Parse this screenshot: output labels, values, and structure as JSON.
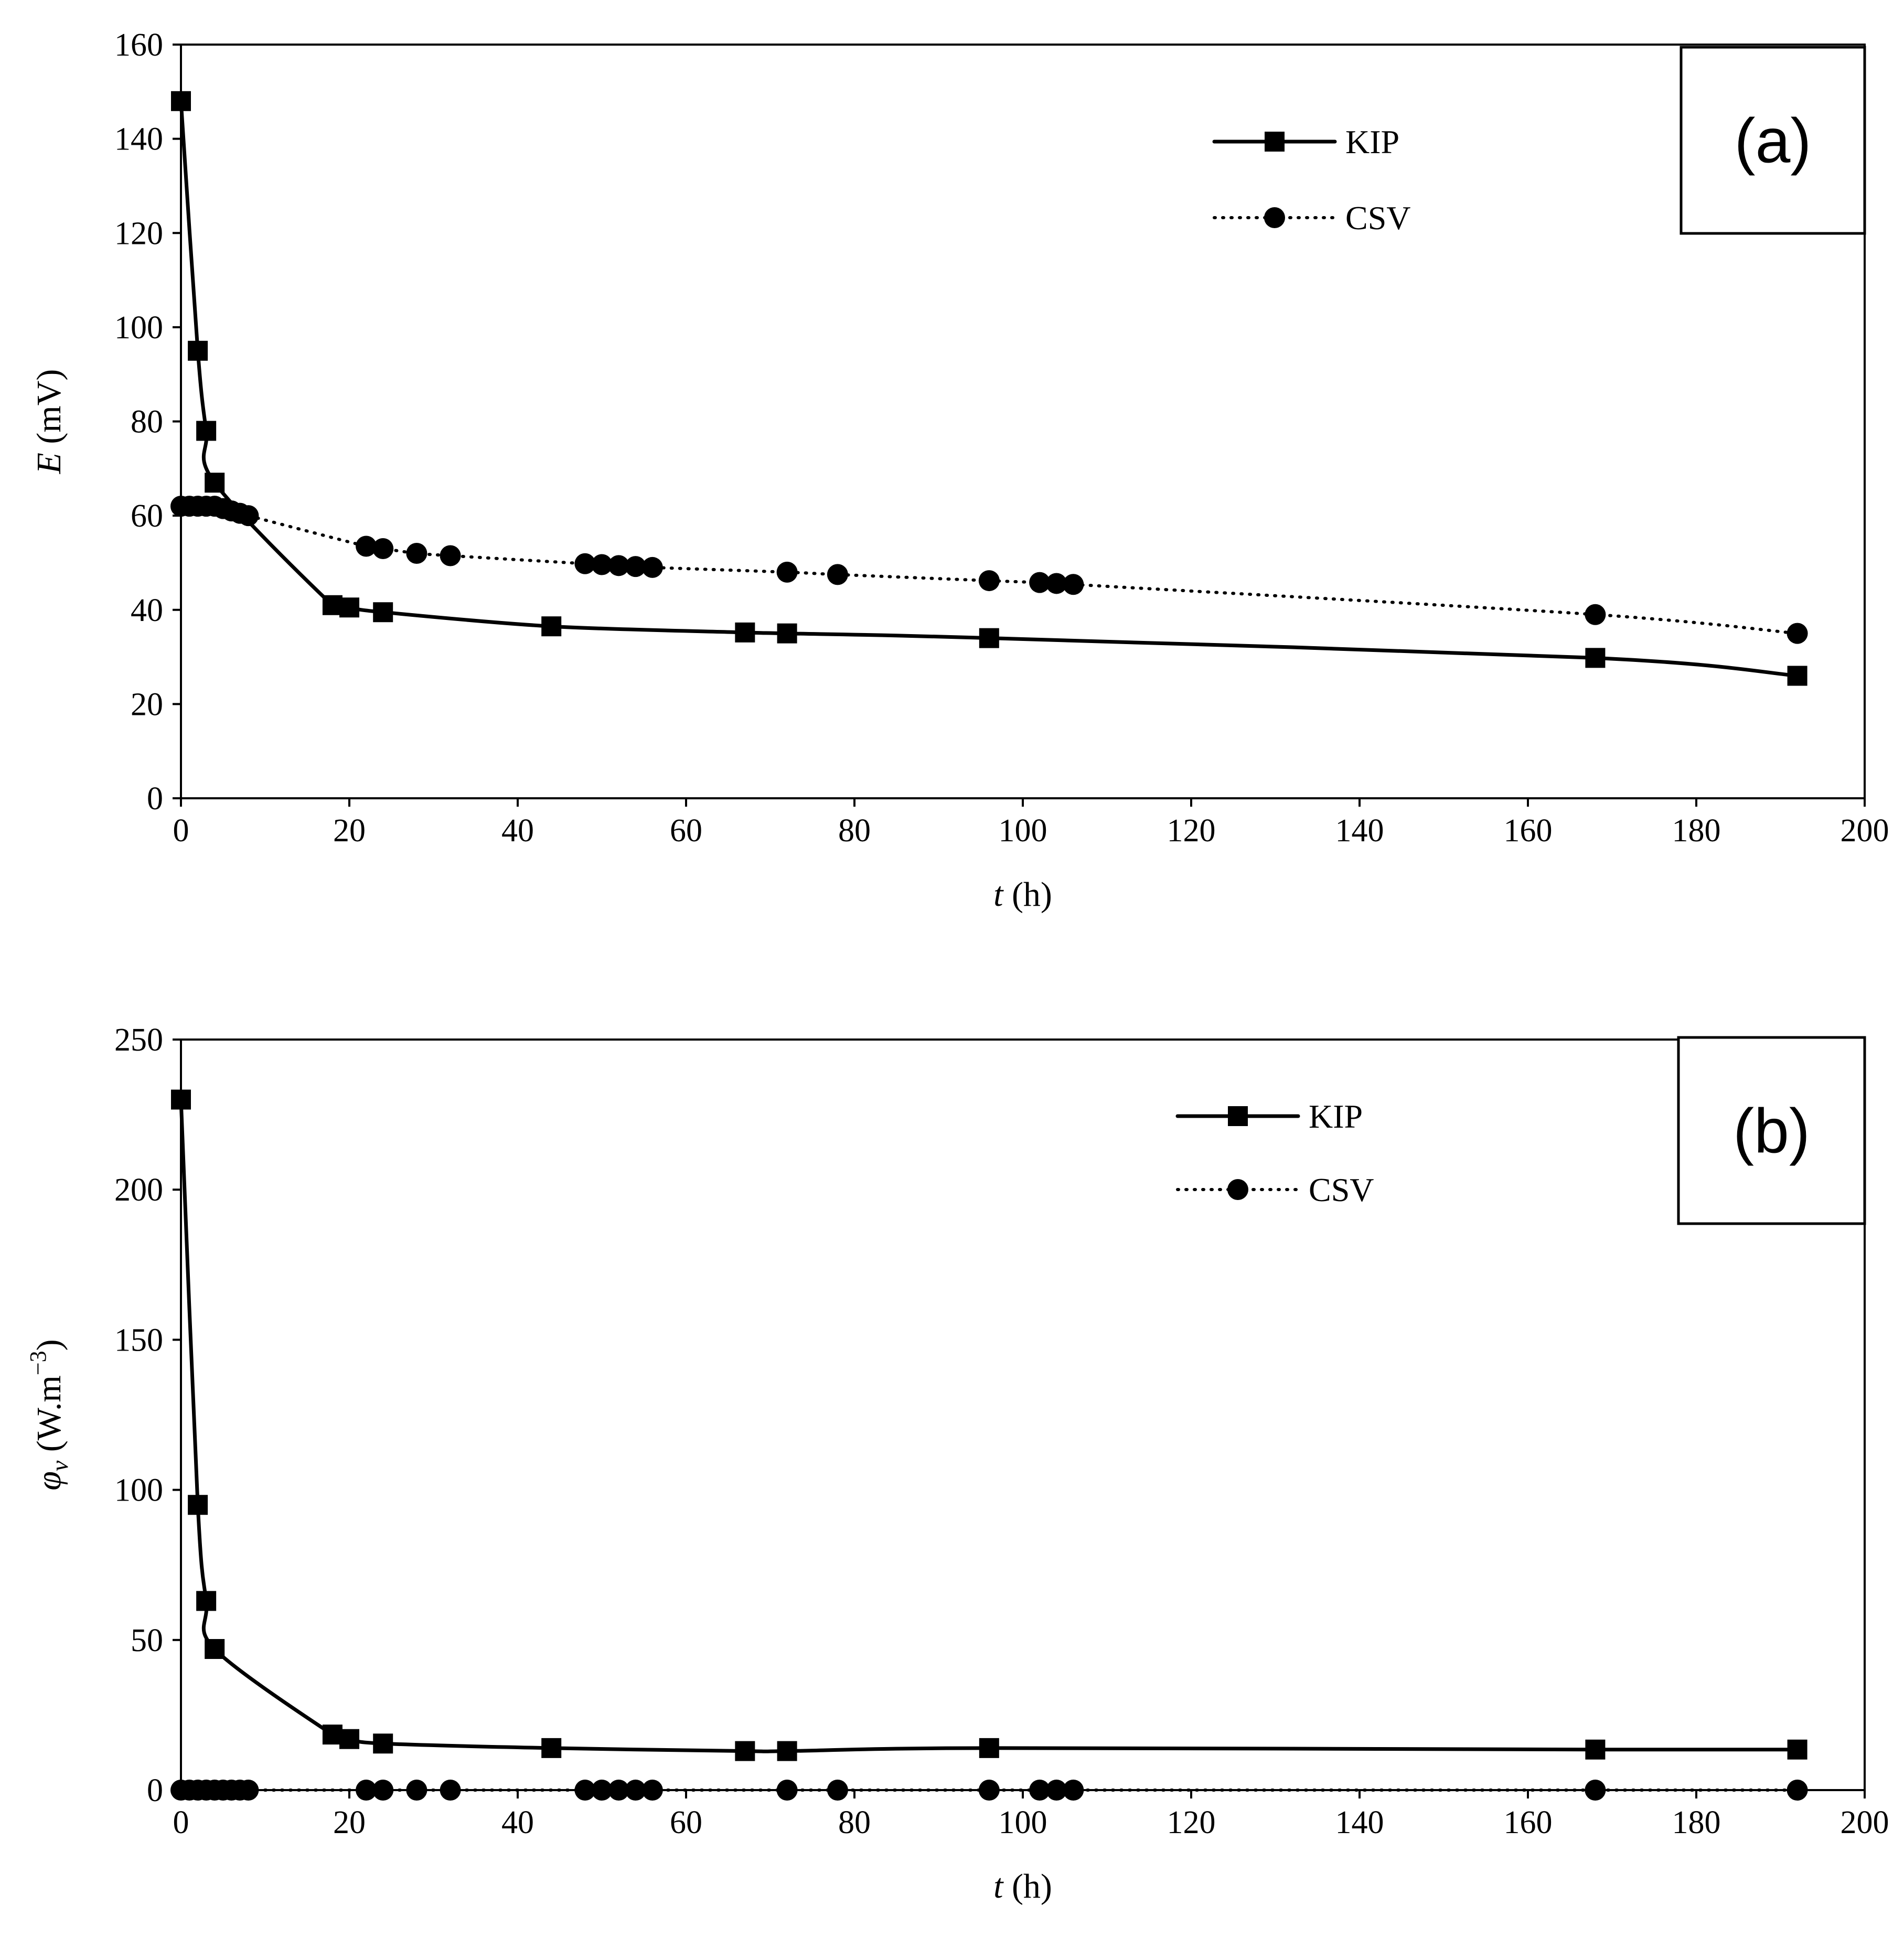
{
  "colors": {
    "ink": "#000000",
    "background": "#ffffff"
  },
  "chart_data": [
    {
      "id": "a",
      "type": "line",
      "panel_label": "(a)",
      "title": "",
      "xlabel": {
        "var": "t",
        "unit": " (h)"
      },
      "ylabel": {
        "var": "E",
        "unit": " (mV)"
      },
      "xlim": [
        0,
        200
      ],
      "ylim": [
        0,
        160
      ],
      "xticks": [
        0,
        20,
        40,
        60,
        80,
        100,
        120,
        140,
        160,
        180,
        200
      ],
      "yticks": [
        0,
        20,
        40,
        60,
        80,
        100,
        120,
        140,
        160
      ],
      "grid": false,
      "legend_position": "top-right",
      "series": [
        {
          "name": "KIP",
          "marker": "square",
          "line": "solid",
          "smooth": true,
          "x": [
            0,
            2,
            3,
            4,
            18,
            20,
            24,
            44,
            67,
            72,
            96,
            168,
            192
          ],
          "y": [
            148,
            95,
            78,
            67,
            41,
            40.5,
            39.5,
            36.5,
            35.2,
            35,
            34,
            29.8,
            26
          ]
        },
        {
          "name": "CSV",
          "marker": "circle",
          "line": "dotted",
          "smooth": true,
          "x": [
            0,
            1,
            2,
            3,
            4,
            5,
            6,
            7,
            8,
            22,
            24,
            28,
            32,
            48,
            50,
            52,
            54,
            56,
            72,
            78,
            96,
            102,
            104,
            106,
            168,
            192
          ],
          "y": [
            62,
            62,
            62,
            62,
            62,
            61.5,
            61,
            60.5,
            60,
            53.5,
            53,
            52,
            51.5,
            49.8,
            49.6,
            49.4,
            49.2,
            49,
            48,
            47.5,
            46.2,
            45.8,
            45.6,
            45.4,
            39,
            35
          ]
        }
      ]
    },
    {
      "id": "b",
      "type": "line",
      "panel_label": "(b)",
      "title": "",
      "xlabel": {
        "var": "t",
        "unit": " (h)"
      },
      "ylabel": {
        "var": "φ",
        "sub": "v",
        "unit": " (W.m",
        "sup": "−3",
        "close": ")"
      },
      "xlim": [
        0,
        200
      ],
      "ylim": [
        0,
        250
      ],
      "xticks": [
        0,
        20,
        40,
        60,
        80,
        100,
        120,
        140,
        160,
        180,
        200
      ],
      "yticks": [
        0,
        50,
        100,
        150,
        200,
        250
      ],
      "grid": false,
      "legend_position": "top-right",
      "series": [
        {
          "name": "KIP",
          "marker": "square",
          "line": "solid",
          "smooth": true,
          "x": [
            0,
            2,
            3,
            4,
            18,
            20,
            24,
            44,
            67,
            72,
            96,
            168,
            192
          ],
          "y": [
            230,
            95,
            63,
            47,
            18.5,
            17,
            15.5,
            14,
            13,
            13,
            14,
            13.5,
            13.5
          ]
        },
        {
          "name": "CSV",
          "marker": "circle",
          "line": "dotted",
          "smooth": false,
          "x": [
            0,
            1,
            2,
            3,
            4,
            5,
            6,
            7,
            8,
            22,
            24,
            28,
            32,
            48,
            50,
            52,
            54,
            56,
            72,
            78,
            96,
            102,
            104,
            106,
            168,
            192
          ],
          "y": [
            0,
            0,
            0,
            0,
            0,
            0,
            0,
            0,
            0,
            0,
            0,
            0,
            0,
            0,
            0,
            0,
            0,
            0,
            0,
            0,
            0,
            0,
            0,
            0,
            0,
            0
          ]
        }
      ]
    }
  ]
}
